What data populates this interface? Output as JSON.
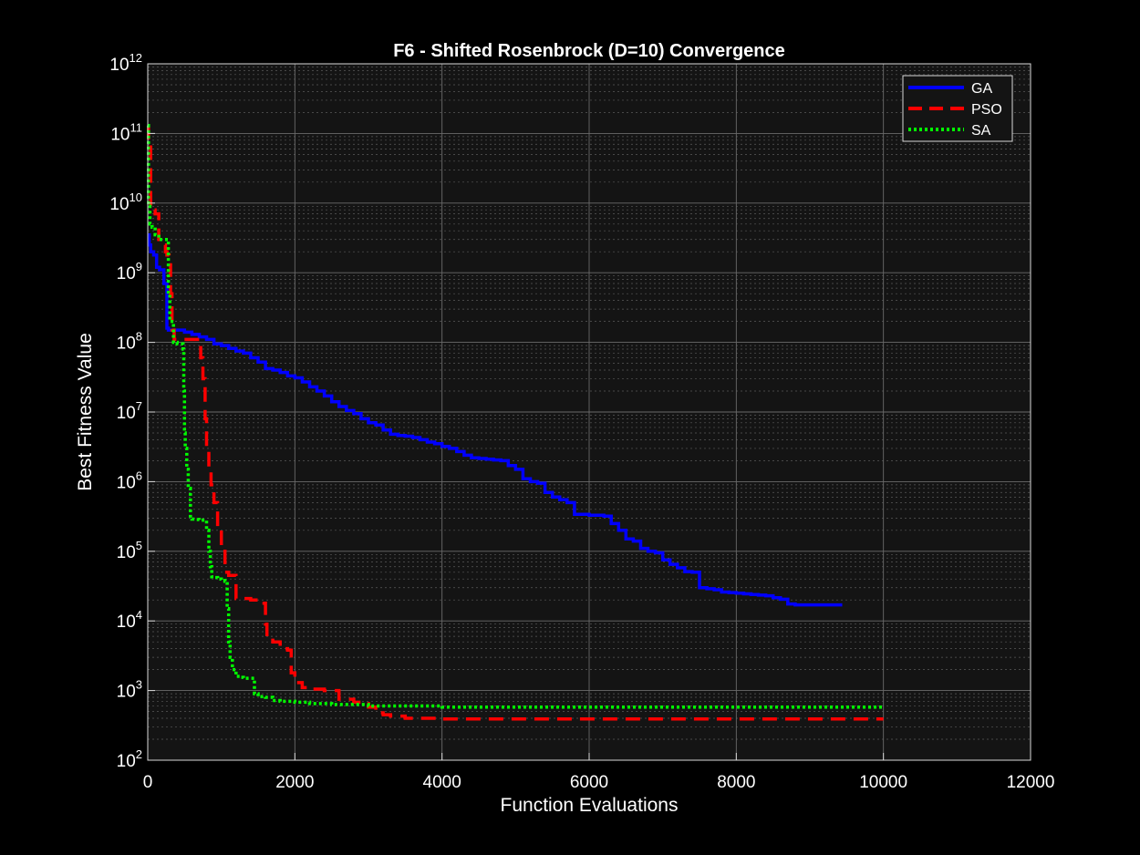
{
  "chart_data": {
    "type": "line",
    "title": "F6 - Shifted Rosenbrock (D=10) Convergence",
    "xlabel": "Function Evaluations",
    "ylabel": "Best Fitness Value",
    "xlim": [
      0,
      12000
    ],
    "ylim": [
      100,
      1000000000000
    ],
    "yscale": "log",
    "x_ticks": [
      0,
      2000,
      4000,
      6000,
      8000,
      10000,
      12000
    ],
    "x_tick_labels": [
      "0",
      "2000",
      "4000",
      "6000",
      "8000",
      "10000",
      "12000"
    ],
    "y_ticks": [
      100,
      1000,
      10000,
      100000,
      1000000,
      10000000,
      100000000,
      1000000000,
      10000000000,
      100000000000,
      1000000000000
    ],
    "y_tick_exponents": [
      "2",
      "3",
      "4",
      "5",
      "6",
      "7",
      "8",
      "9",
      "10",
      "11",
      "12"
    ],
    "y_tick_base": "10",
    "grid": true,
    "minor_grid": true,
    "legend_position": "top-right",
    "background": "#141414",
    "series": [
      {
        "name": "GA",
        "color": "#0000ff",
        "style": "solid",
        "x": [
          0,
          20,
          40,
          80,
          120,
          160,
          180,
          200,
          220,
          260,
          280,
          300,
          400,
          500,
          600,
          700,
          800,
          900,
          1000,
          1100,
          1200,
          1300,
          1400,
          1500,
          1600,
          1700,
          1800,
          1900,
          2000,
          2100,
          2200,
          2300,
          2400,
          2500,
          2600,
          2700,
          2800,
          2900,
          3000,
          3100,
          3200,
          3300,
          3400,
          3500,
          3600,
          3700,
          3800,
          3900,
          4000,
          4100,
          4200,
          4300,
          4400,
          4500,
          4600,
          4700,
          4800,
          4900,
          5000,
          5100,
          5200,
          5300,
          5400,
          5500,
          5600,
          5700,
          5800,
          5900,
          6000,
          6100,
          6200,
          6300,
          6400,
          6500,
          6600,
          6700,
          6800,
          6900,
          7000,
          7100,
          7200,
          7300,
          7400,
          7500,
          7600,
          7700,
          7800,
          7900,
          8000,
          8100,
          8200,
          8300,
          8400,
          8500,
          8600,
          8700,
          8800,
          8900,
          9000,
          9100,
          9200,
          9300,
          9440
        ],
        "y": [
          3500000000,
          2500000000,
          2000000000,
          1800000000,
          1200000000,
          1100000000,
          1100000000,
          1100000000,
          700000000,
          160000000,
          150000000,
          150000000,
          150000000,
          140000000,
          130000000,
          120000000,
          110000000,
          95000000,
          90000000,
          82000000,
          75000000,
          70000000,
          60000000,
          52000000,
          42000000,
          40000000,
          37000000,
          33000000,
          31000000,
          27000000,
          23000000,
          20000000,
          17000000,
          14000000,
          12000000,
          10500000,
          9500000,
          8000000,
          7000000,
          6500000,
          5500000,
          4800000,
          4600000,
          4500000,
          4300000,
          4000000,
          3700000,
          3500000,
          3200000,
          3000000,
          2700000,
          2400000,
          2200000,
          2150000,
          2100000,
          2050000,
          2000000,
          1700000,
          1500000,
          1100000,
          1000000,
          950000,
          700000,
          600000,
          550000,
          500000,
          340000,
          340000,
          330000,
          330000,
          320000,
          250000,
          200000,
          150000,
          140000,
          110000,
          100000,
          95000,
          75000,
          65000,
          58000,
          51000,
          50000,
          30000,
          29000,
          28000,
          26000,
          25500,
          25000,
          24500,
          24000,
          23500,
          23000,
          21500,
          20500,
          17500,
          17000,
          17000,
          17000,
          17000,
          17000,
          17000,
          17000
        ]
      },
      {
        "name": "PSO",
        "color": "#ff0000",
        "style": "dashed",
        "x": [
          0,
          10,
          40,
          100,
          150,
          200,
          240,
          260,
          290,
          310,
          330,
          360,
          450,
          500,
          600,
          700,
          720,
          750,
          780,
          800,
          830,
          860,
          900,
          950,
          1000,
          1050,
          1100,
          1200,
          1300,
          1400,
          1500,
          1580,
          1600,
          1620,
          1650,
          1700,
          1800,
          1900,
          1950,
          2000,
          2100,
          2200,
          2400,
          2600,
          2800,
          2900,
          3000,
          3100,
          3200,
          3300,
          3500,
          4000,
          5000,
          6000,
          7000,
          8000,
          9000,
          10000
        ],
        "y": [
          130000000000,
          80000000000,
          8000000000,
          7000000000,
          3000000000,
          2500000000,
          2000000000,
          1800000000,
          1300000000,
          500000000,
          150000000,
          110000000,
          110000000,
          110000000,
          110000000,
          105000000,
          60000000,
          30000000,
          8000000,
          3000000,
          1500000,
          900000,
          500000,
          200000,
          100000,
          50000,
          45000,
          21000,
          21000,
          20000,
          20000,
          18000,
          9000,
          6000,
          5800,
          5000,
          4000,
          3800,
          1800,
          1300,
          1100,
          1050,
          1000,
          750,
          680,
          650,
          580,
          480,
          450,
          430,
          400,
          390,
          390,
          390,
          390,
          390,
          390,
          390
        ]
      },
      {
        "name": "SA",
        "color": "#00ff00",
        "style": "dotted",
        "x": [
          0,
          10,
          30,
          60,
          100,
          150,
          180,
          200,
          230,
          260,
          280,
          300,
          350,
          400,
          440,
          470,
          480,
          490,
          500,
          510,
          530,
          550,
          580,
          600,
          640,
          700,
          750,
          780,
          800,
          830,
          850,
          870,
          900,
          950,
          1000,
          1050,
          1080,
          1100,
          1120,
          1150,
          1200,
          1250,
          1300,
          1400,
          1450,
          1500,
          1600,
          1700,
          1800,
          2000,
          2200,
          2500,
          3000,
          4000,
          5000,
          6000,
          7000,
          8000,
          9000,
          10000
        ],
        "y": [
          130000000000,
          9000000000,
          5000000000,
          4500000000,
          3500000000,
          3000000000,
          3000000000,
          3000000000,
          3000000000,
          3000000000,
          500000000,
          200000000,
          100000000,
          95000000,
          95000000,
          95000000,
          80000000,
          20000000,
          5000000,
          3000000,
          1500000,
          800000,
          300000,
          290000,
          285000,
          280000,
          280000,
          280000,
          200000,
          100000,
          60000,
          43000,
          42000,
          40000,
          38000,
          37000,
          15000,
          5000,
          3000,
          2000,
          1600,
          1550,
          1500,
          1500,
          900,
          820,
          800,
          720,
          700,
          680,
          650,
          630,
          600,
          580,
          580,
          580,
          580,
          580,
          580,
          580
        ]
      }
    ]
  }
}
